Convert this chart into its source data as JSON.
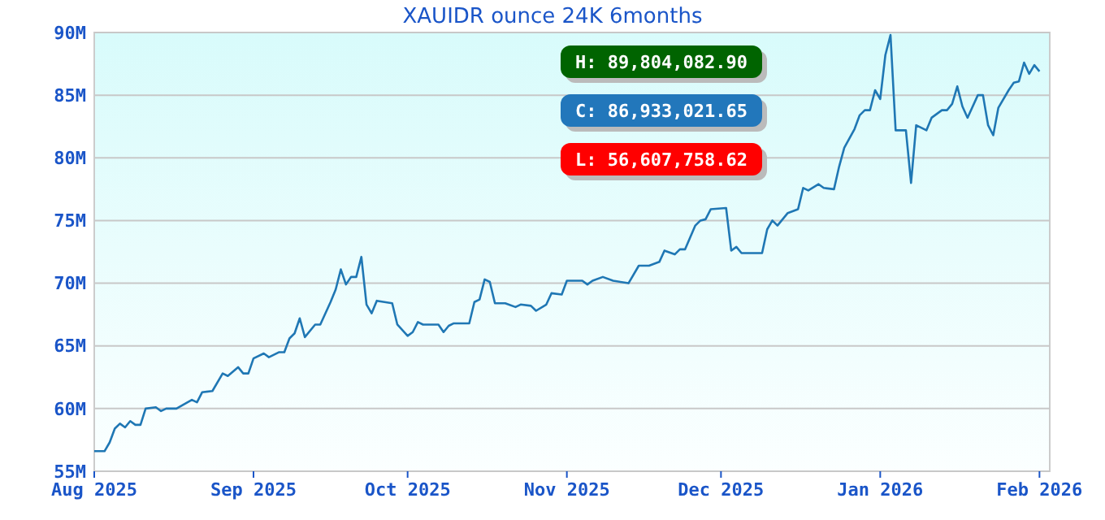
{
  "chart_data": {
    "type": "line",
    "title": "XAUIDR ounce 24K 6months",
    "x": [
      "2025-08-01",
      "2025-08-03",
      "2025-08-04",
      "2025-08-05",
      "2025-08-06",
      "2025-08-07",
      "2025-08-08",
      "2025-08-09",
      "2025-08-10",
      "2025-08-11",
      "2025-08-13",
      "2025-08-14",
      "2025-08-15",
      "2025-08-17",
      "2025-08-20",
      "2025-08-21",
      "2025-08-22",
      "2025-08-24",
      "2025-08-26",
      "2025-08-27",
      "2025-08-29",
      "2025-08-30",
      "2025-08-31",
      "2025-09-01",
      "2025-09-03",
      "2025-09-04",
      "2025-09-06",
      "2025-09-07",
      "2025-09-08",
      "2025-09-09",
      "2025-09-10",
      "2025-09-11",
      "2025-09-13",
      "2025-09-14",
      "2025-09-16",
      "2025-09-17",
      "2025-09-18",
      "2025-09-19",
      "2025-09-20",
      "2025-09-21",
      "2025-09-22",
      "2025-09-23",
      "2025-09-24",
      "2025-09-25",
      "2025-09-28",
      "2025-09-29",
      "2025-10-01",
      "2025-10-02",
      "2025-10-03",
      "2025-10-04",
      "2025-10-07",
      "2025-10-08",
      "2025-10-09",
      "2025-10-10",
      "2025-10-13",
      "2025-10-14",
      "2025-10-15",
      "2025-10-16",
      "2025-10-17",
      "2025-10-18",
      "2025-10-20",
      "2025-10-22",
      "2025-10-23",
      "2025-10-25",
      "2025-10-26",
      "2025-10-28",
      "2025-10-29",
      "2025-10-31",
      "2025-11-01",
      "2025-11-04",
      "2025-11-05",
      "2025-11-06",
      "2025-11-08",
      "2025-11-10",
      "2025-11-13",
      "2025-11-15",
      "2025-11-17",
      "2025-11-19",
      "2025-11-20",
      "2025-11-22",
      "2025-11-23",
      "2025-11-24",
      "2025-11-26",
      "2025-11-27",
      "2025-11-28",
      "2025-11-29",
      "2025-12-02",
      "2025-12-03",
      "2025-12-04",
      "2025-12-05",
      "2025-12-09",
      "2025-12-10",
      "2025-12-11",
      "2025-12-12",
      "2025-12-14",
      "2025-12-16",
      "2025-12-17",
      "2025-12-18",
      "2025-12-20",
      "2025-12-21",
      "2025-12-23",
      "2025-12-24",
      "2025-12-25",
      "2025-12-27",
      "2025-12-28",
      "2025-12-29",
      "2025-12-30",
      "2025-12-31",
      "2026-01-01",
      "2026-01-02",
      "2026-01-03",
      "2026-01-04",
      "2026-01-06",
      "2026-01-07",
      "2026-01-08",
      "2026-01-10",
      "2026-01-11",
      "2026-01-13",
      "2026-01-14",
      "2026-01-15",
      "2026-01-16",
      "2026-01-17",
      "2026-01-18",
      "2026-01-20",
      "2026-01-21",
      "2026-01-22",
      "2026-01-23",
      "2026-01-24",
      "2026-01-26",
      "2026-01-27",
      "2026-01-28",
      "2026-01-29",
      "2026-01-30",
      "2026-01-31",
      "2026-02-01"
    ],
    "series": [
      {
        "color": "#1f77b4",
        "values": [
          56.6,
          56.6,
          57.3,
          58.4,
          58.8,
          58.5,
          59.0,
          58.7,
          58.7,
          60.0,
          60.1,
          59.8,
          60.0,
          60.0,
          60.7,
          60.5,
          61.3,
          61.4,
          62.8,
          62.6,
          63.3,
          62.8,
          62.8,
          64.0,
          64.4,
          64.1,
          64.5,
          64.5,
          65.6,
          66.0,
          67.2,
          65.7,
          66.7,
          66.7,
          68.5,
          69.5,
          71.1,
          69.9,
          70.5,
          70.5,
          72.1,
          68.3,
          67.6,
          68.6,
          68.4,
          66.7,
          65.8,
          66.1,
          66.9,
          66.7,
          66.7,
          66.1,
          66.6,
          66.8,
          66.8,
          68.5,
          68.7,
          70.3,
          70.1,
          68.4,
          68.4,
          68.1,
          68.3,
          68.2,
          67.8,
          68.3,
          69.2,
          69.1,
          70.2,
          70.2,
          69.9,
          70.2,
          70.5,
          70.2,
          70.0,
          71.4,
          71.4,
          71.7,
          72.6,
          72.3,
          72.7,
          72.7,
          74.6,
          75.0,
          75.1,
          75.9,
          76.0,
          72.6,
          72.9,
          72.4,
          72.4,
          74.3,
          75.0,
          74.6,
          75.6,
          75.9,
          77.6,
          77.4,
          77.9,
          77.6,
          77.5,
          79.3,
          80.8,
          82.3,
          83.4,
          83.8,
          83.8,
          85.4,
          84.7,
          88.2,
          89.8,
          82.2,
          82.2,
          78.0,
          82.6,
          82.2,
          83.2,
          83.8,
          83.8,
          84.3,
          85.7,
          84.1,
          83.2,
          85.0,
          85.0,
          82.6,
          81.8,
          84.0,
          85.4,
          86.0,
          86.1,
          87.6,
          86.7,
          87.4,
          86.9
        ]
      }
    ],
    "xlim": [
      "2025-08-01",
      "2026-02-03"
    ],
    "xticks": [
      {
        "value": "2025-08-01",
        "label": "Aug 2025"
      },
      {
        "value": "2025-09-01",
        "label": "Sep 2025"
      },
      {
        "value": "2025-10-01",
        "label": "Oct 2025"
      },
      {
        "value": "2025-11-01",
        "label": "Nov 2025"
      },
      {
        "value": "2025-12-01",
        "label": "Dec 2025"
      },
      {
        "value": "2026-01-01",
        "label": "Jan 2026"
      },
      {
        "value": "2026-02-01",
        "label": "Feb 2026"
      }
    ],
    "ylim": [
      55,
      90
    ],
    "yticks": [
      {
        "value": 55,
        "label": "55M"
      },
      {
        "value": 60,
        "label": "60M"
      },
      {
        "value": 65,
        "label": "65M"
      },
      {
        "value": 70,
        "label": "70M"
      },
      {
        "value": 75,
        "label": "75M"
      },
      {
        "value": 80,
        "label": "80M"
      },
      {
        "value": 85,
        "label": "85M"
      },
      {
        "value": 90,
        "label": "90M"
      }
    ],
    "grid": "y",
    "annotations": [
      "H: 89,804,082.90",
      "C: 86,933,021.65",
      "L: 56,607,758.62"
    ]
  }
}
